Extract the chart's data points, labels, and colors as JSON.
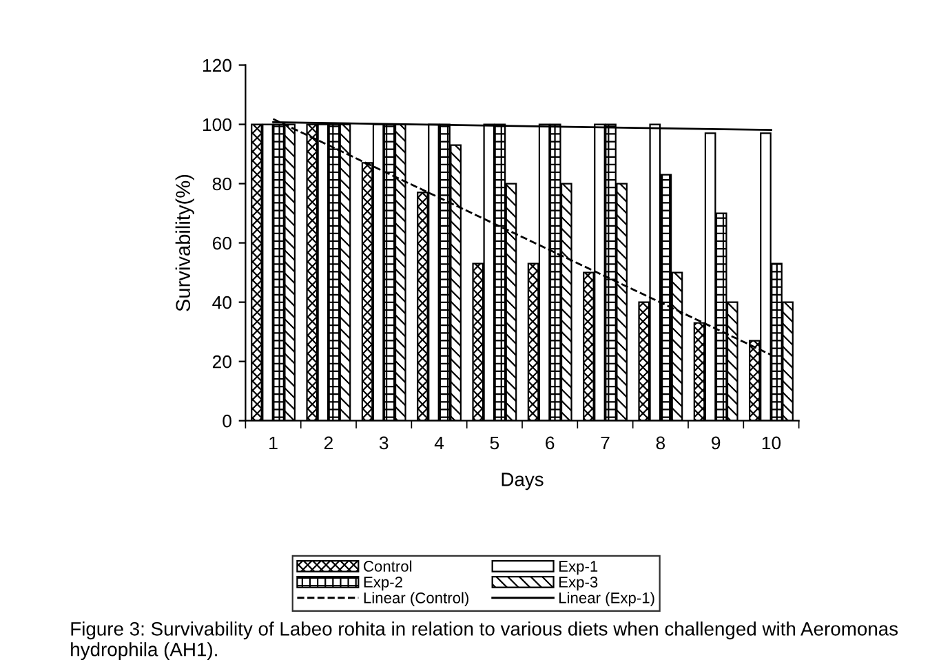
{
  "chart_data": {
    "type": "bar",
    "xlabel": "Days",
    "ylabel": "Survivability(%)",
    "categories": [
      "1",
      "2",
      "3",
      "4",
      "5",
      "6",
      "7",
      "8",
      "9",
      "10"
    ],
    "series": [
      {
        "name": "Control",
        "color": "#000000",
        "values": [
          100,
          100,
          87,
          77,
          53,
          53,
          50,
          40,
          33,
          27
        ]
      },
      {
        "name": "Exp-1",
        "color": "#000000",
        "values": [
          100,
          100,
          100,
          100,
          100,
          100,
          100,
          100,
          97,
          97
        ]
      },
      {
        "name": "Exp-2",
        "color": "#000000",
        "values": [
          100,
          100,
          100,
          100,
          100,
          100,
          100,
          83,
          70,
          53
        ]
      },
      {
        "name": "Exp-3",
        "color": "#000000",
        "values": [
          100,
          100,
          100,
          93,
          80,
          80,
          80,
          50,
          40,
          40
        ]
      },
      {
        "name": "Linear (Control)",
        "type": "line",
        "line_style": "dashed",
        "color": "#000000",
        "x": [
          "1",
          "10"
        ],
        "values": [
          101.8,
          22.2
        ]
      },
      {
        "name": "Linear (Exp-1)",
        "type": "line",
        "line_style": "solid",
        "color": "#000000",
        "x": [
          "1",
          "10"
        ],
        "values": [
          100.7,
          98.1
        ]
      }
    ],
    "ylim": [
      0,
      120
    ],
    "yticks": [
      0,
      20,
      40,
      60,
      80,
      100,
      120
    ],
    "grid": false,
    "legend": "bottom",
    "annotations": [
      "Figure 3: Survivability of Labeo rohita in relation to various diets when challenged with Aeromonas hydrophila (AH1)."
    ]
  }
}
